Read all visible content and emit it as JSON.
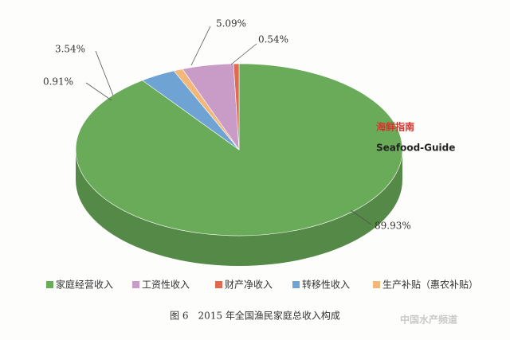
{
  "chart_data": {
    "type": "pie",
    "categories": [
      "家庭经营收入",
      "工资性收入",
      "财产净收入",
      "转移性收入",
      "生产补贴（惠农补贴）"
    ],
    "values": [
      89.93,
      5.09,
      0.54,
      3.54,
      0.91
    ],
    "value_labels": [
      "89.93%",
      "5.09%",
      "0.54%",
      "3.54%",
      "0.91%"
    ],
    "colors": [
      "#6aab5a",
      "#c99cc8",
      "#e06a4f",
      "#6fa3d4",
      "#f2b87a"
    ],
    "caption": "图 6　2015 年全国渔民家庭总收入构成"
  },
  "watermarks": {
    "brand": "海鲜指南",
    "brand_en": "Seafood-Guide",
    "channel": "中国水产频道"
  }
}
